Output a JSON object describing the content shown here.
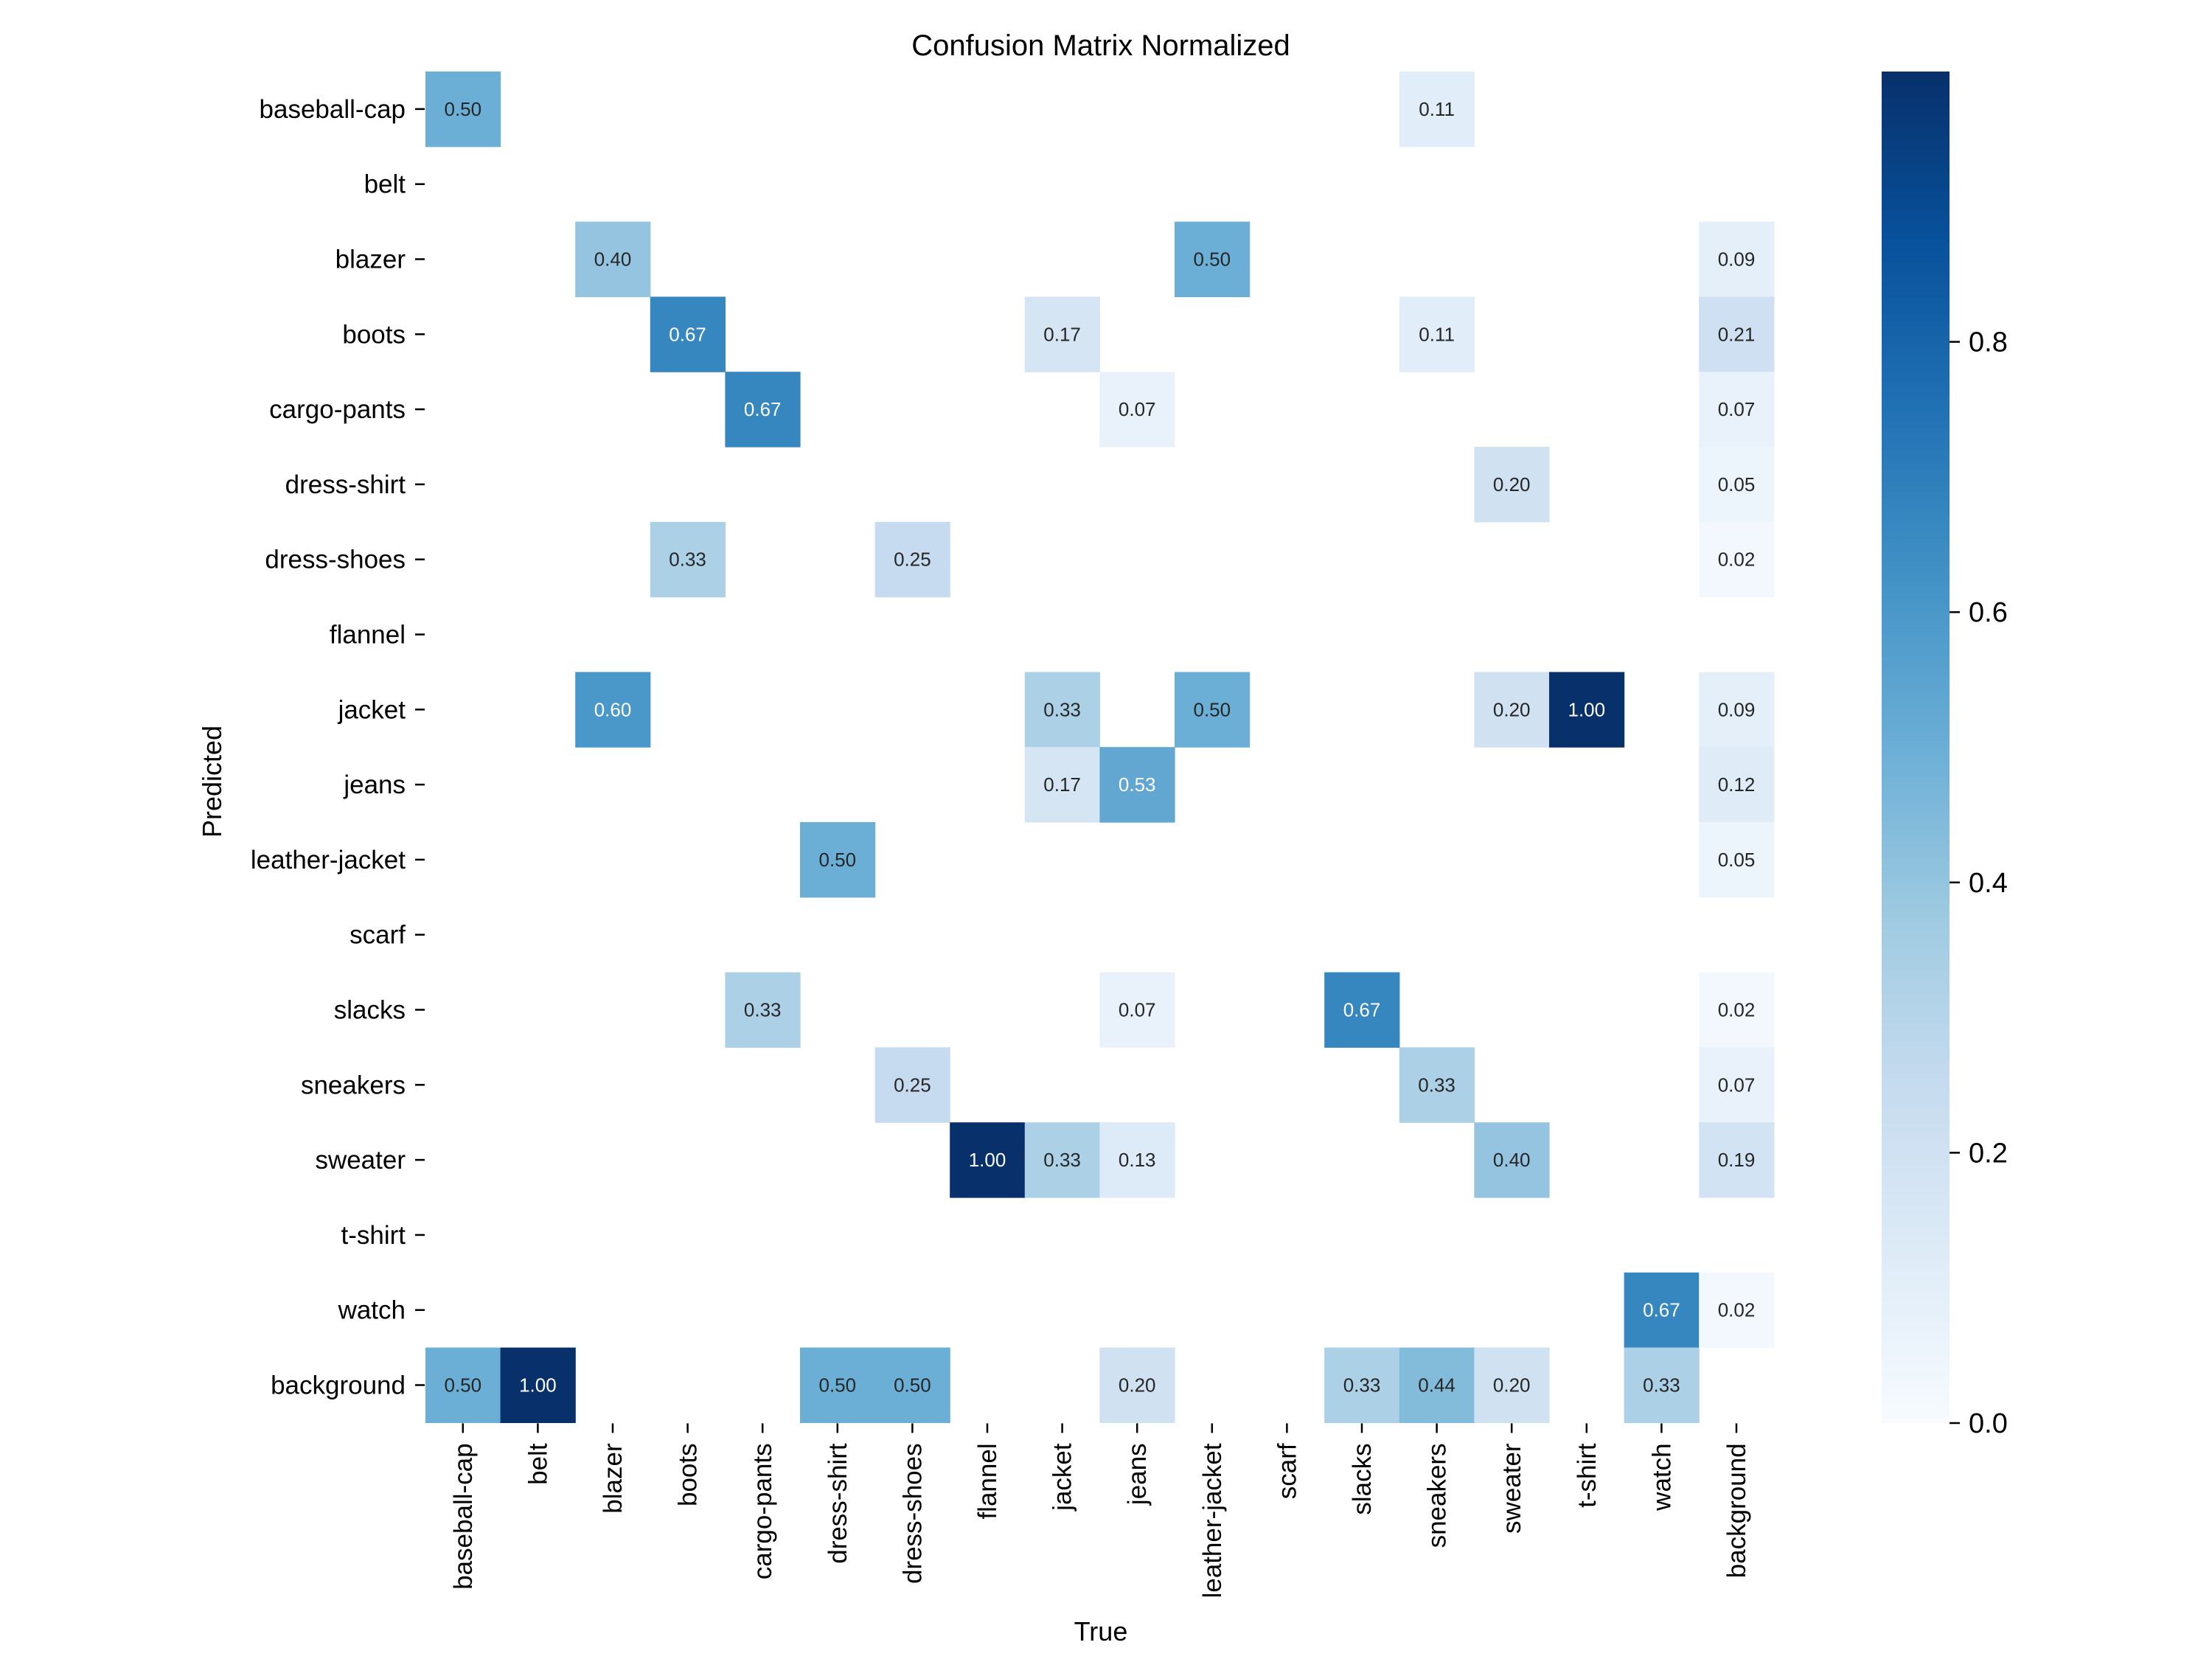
{
  "chart_data": {
    "type": "heatmap",
    "title": "Confusion Matrix Normalized",
    "xlabel": "True",
    "ylabel": "Predicted",
    "x_categories": [
      "baseball-cap",
      "belt",
      "blazer",
      "boots",
      "cargo-pants",
      "dress-shirt",
      "dress-shoes",
      "flannel",
      "jacket",
      "jeans",
      "leather-jacket",
      "scarf",
      "slacks",
      "sneakers",
      "sweater",
      "t-shirt",
      "watch",
      "background"
    ],
    "y_categories": [
      "baseball-cap",
      "belt",
      "blazer",
      "boots",
      "cargo-pants",
      "dress-shirt",
      "dress-shoes",
      "flannel",
      "jacket",
      "jeans",
      "leather-jacket",
      "scarf",
      "slacks",
      "sneakers",
      "sweater",
      "t-shirt",
      "watch",
      "background"
    ],
    "values": [
      [
        0.5,
        null,
        null,
        null,
        null,
        null,
        null,
        null,
        null,
        null,
        null,
        null,
        null,
        0.11,
        null,
        null,
        null,
        null
      ],
      [
        null,
        null,
        null,
        null,
        null,
        null,
        null,
        null,
        null,
        null,
        null,
        null,
        null,
        null,
        null,
        null,
        null,
        null
      ],
      [
        null,
        null,
        0.4,
        null,
        null,
        null,
        null,
        null,
        null,
        null,
        0.5,
        null,
        null,
        null,
        null,
        null,
        null,
        0.09
      ],
      [
        null,
        null,
        null,
        0.67,
        null,
        null,
        null,
        null,
        0.17,
        null,
        null,
        null,
        null,
        0.11,
        null,
        null,
        null,
        0.21
      ],
      [
        null,
        null,
        null,
        null,
        0.67,
        null,
        null,
        null,
        null,
        0.07,
        null,
        null,
        null,
        null,
        null,
        null,
        null,
        0.07
      ],
      [
        null,
        null,
        null,
        null,
        null,
        null,
        null,
        null,
        null,
        null,
        null,
        null,
        null,
        null,
        0.2,
        null,
        null,
        0.05
      ],
      [
        null,
        null,
        null,
        0.33,
        null,
        null,
        0.25,
        null,
        null,
        null,
        null,
        null,
        null,
        null,
        null,
        null,
        null,
        0.02
      ],
      [
        null,
        null,
        null,
        null,
        null,
        null,
        null,
        null,
        null,
        null,
        null,
        null,
        null,
        null,
        null,
        null,
        null,
        null
      ],
      [
        null,
        null,
        0.6,
        null,
        null,
        null,
        null,
        null,
        0.33,
        null,
        0.5,
        null,
        null,
        null,
        0.2,
        1.0,
        null,
        0.09
      ],
      [
        null,
        null,
        null,
        null,
        null,
        null,
        null,
        null,
        0.17,
        0.53,
        null,
        null,
        null,
        null,
        null,
        null,
        null,
        0.12
      ],
      [
        null,
        null,
        null,
        null,
        null,
        0.5,
        null,
        null,
        null,
        null,
        null,
        null,
        null,
        null,
        null,
        null,
        null,
        0.05
      ],
      [
        null,
        null,
        null,
        null,
        null,
        null,
        null,
        null,
        null,
        null,
        null,
        null,
        null,
        null,
        null,
        null,
        null,
        null
      ],
      [
        null,
        null,
        null,
        null,
        0.33,
        null,
        null,
        null,
        null,
        0.07,
        null,
        null,
        0.67,
        null,
        null,
        null,
        null,
        0.02
      ],
      [
        null,
        null,
        null,
        null,
        null,
        null,
        0.25,
        null,
        null,
        null,
        null,
        null,
        null,
        0.33,
        null,
        null,
        null,
        0.07
      ],
      [
        null,
        null,
        null,
        null,
        null,
        null,
        null,
        1.0,
        0.33,
        0.13,
        null,
        null,
        null,
        null,
        0.4,
        null,
        null,
        0.19
      ],
      [
        null,
        null,
        null,
        null,
        null,
        null,
        null,
        null,
        null,
        null,
        null,
        null,
        null,
        null,
        null,
        null,
        null,
        null
      ],
      [
        null,
        null,
        null,
        null,
        null,
        null,
        null,
        null,
        null,
        null,
        null,
        null,
        null,
        null,
        null,
        null,
        0.67,
        0.02
      ],
      [
        0.5,
        1.0,
        null,
        null,
        null,
        0.5,
        0.5,
        null,
        null,
        0.2,
        null,
        null,
        0.33,
        0.44,
        0.2,
        null,
        0.33,
        null
      ]
    ],
    "colorbar": {
      "colormap": "Blues",
      "vmin": 0.0,
      "vmax": 1.0,
      "ticks": [
        "0.0",
        "0.2",
        "0.4",
        "0.6",
        "0.8"
      ],
      "tick_values": [
        0.0,
        0.2,
        0.4,
        0.6,
        0.8
      ]
    },
    "grid": false
  }
}
